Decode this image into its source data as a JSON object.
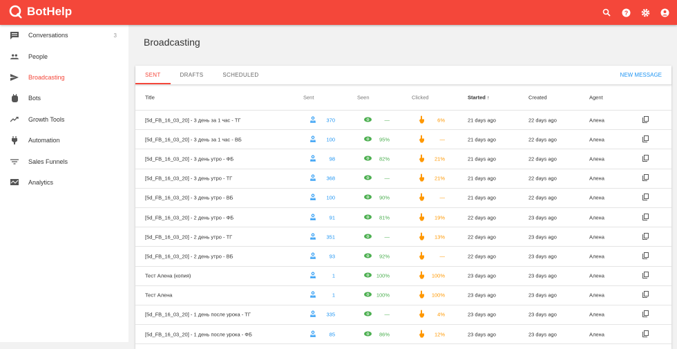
{
  "app": {
    "name": "BotHelp",
    "accent": "#f4473a"
  },
  "topbar": {
    "icons": [
      "search-icon",
      "help-icon",
      "settings-icon",
      "account-icon"
    ]
  },
  "sidebar": {
    "items": [
      {
        "label": "Conversations",
        "icon": "chat-icon",
        "badge": "3"
      },
      {
        "label": "People",
        "icon": "people-icon"
      },
      {
        "label": "Broadcasting",
        "icon": "send-icon",
        "active": true
      },
      {
        "label": "Bots",
        "icon": "bot-icon"
      },
      {
        "label": "Growth Tools",
        "icon": "trending-icon"
      },
      {
        "label": "Automation",
        "icon": "plug-icon"
      },
      {
        "label": "Sales Funnels",
        "icon": "filter-icon"
      },
      {
        "label": "Analytics",
        "icon": "analytics-icon"
      }
    ]
  },
  "page": {
    "title": "Broadcasting"
  },
  "tabs": [
    {
      "label": "SENT",
      "active": true
    },
    {
      "label": "DRAFTS"
    },
    {
      "label": "SCHEDULED"
    }
  ],
  "new_message": "NEW MESSAGE",
  "table": {
    "columns": {
      "title": "Title",
      "sent": "Sent",
      "seen": "Seen",
      "clicked": "Clicked",
      "started": "Started ↑",
      "created": "Created",
      "agent": "Agent"
    },
    "rows": [
      {
        "title": "[5d_FB_16_03_20] - 3 день за 1 час - ТГ",
        "sent": "370",
        "seen": "—",
        "clicked": "6%",
        "started": "21 days ago",
        "created": "22 days ago",
        "agent": "Алена"
      },
      {
        "title": "[5d_FB_16_03_20] - 3 день за 1 час - ВБ",
        "sent": "100",
        "seen": "95%",
        "clicked": "—",
        "started": "21 days ago",
        "created": "22 days ago",
        "agent": "Алена"
      },
      {
        "title": "[5d_FB_16_03_20] - 3 день утро - ФБ",
        "sent": "98",
        "seen": "82%",
        "clicked": "21%",
        "started": "21 days ago",
        "created": "22 days ago",
        "agent": "Алена"
      },
      {
        "title": "[5d_FB_16_03_20] - 3 день утро - ТГ",
        "sent": "368",
        "seen": "—",
        "clicked": "21%",
        "started": "21 days ago",
        "created": "22 days ago",
        "agent": "Алена"
      },
      {
        "title": "[5d_FB_16_03_20] - 3 день утро - ВБ",
        "sent": "100",
        "seen": "90%",
        "clicked": "—",
        "started": "21 days ago",
        "created": "22 days ago",
        "agent": "Алена"
      },
      {
        "title": "[5d_FB_16_03_20] - 2 день утро - ФБ",
        "sent": "91",
        "seen": "81%",
        "clicked": "19%",
        "started": "22 days ago",
        "created": "23 days ago",
        "agent": "Алена"
      },
      {
        "title": "[5d_FB_16_03_20] - 2 день утро - ТГ",
        "sent": "351",
        "seen": "—",
        "clicked": "13%",
        "started": "22 days ago",
        "created": "23 days ago",
        "agent": "Алена"
      },
      {
        "title": "[5d_FB_16_03_20] - 2 день утро - ВБ",
        "sent": "93",
        "seen": "92%",
        "clicked": "—",
        "started": "22 days ago",
        "created": "23 days ago",
        "agent": "Алена"
      },
      {
        "title": "Тест Алена (копия)",
        "sent": "1",
        "seen": "100%",
        "clicked": "100%",
        "started": "23 days ago",
        "created": "23 days ago",
        "agent": "Алена"
      },
      {
        "title": "Тест Алена",
        "sent": "1",
        "seen": "100%",
        "clicked": "100%",
        "started": "23 days ago",
        "created": "23 days ago",
        "agent": "Алена"
      },
      {
        "title": "[5d_FB_16_03_20] - 1 день после урока - ТГ",
        "sent": "335",
        "seen": "—",
        "clicked": "4%",
        "started": "23 days ago",
        "created": "23 days ago",
        "agent": "Алена"
      },
      {
        "title": "[5d_FB_16_03_20] - 1 день после урока - ФБ",
        "sent": "85",
        "seen": "86%",
        "clicked": "12%",
        "started": "23 days ago",
        "created": "23 days ago",
        "agent": "Алена"
      }
    ]
  }
}
